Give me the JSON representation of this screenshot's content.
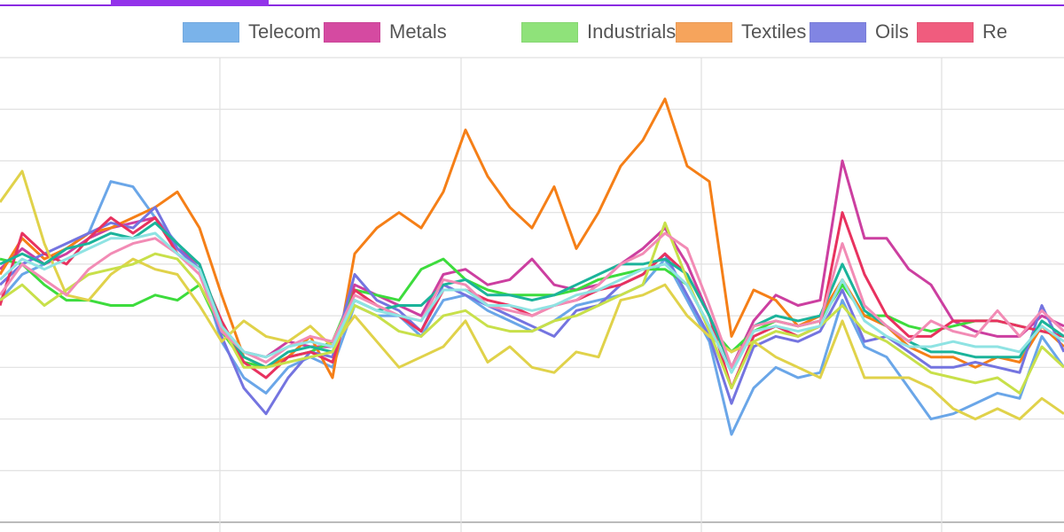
{
  "chart_data": {
    "type": "line",
    "title": "",
    "xlabel": "",
    "ylabel": "",
    "grid": true,
    "legend_position": "top",
    "ylim": [
      0,
      9
    ],
    "series": [
      {
        "name": "Telecom",
        "legend_color": "#7ab3ea",
        "color": "#6aa6e8",
        "values": [
          4.3,
          4.8,
          5.0,
          5.3,
          5.6,
          6.6,
          6.5,
          5.9,
          5.4,
          4.9,
          3.5,
          2.8,
          2.5,
          3.0,
          3.2,
          3.0,
          4.2,
          4.0,
          4.0,
          3.6,
          4.3,
          4.4,
          4.1,
          3.9,
          3.7,
          3.9,
          4.2,
          4.3,
          4.4,
          4.6,
          5.1,
          4.3,
          3.5,
          1.7,
          2.6,
          3.0,
          2.8,
          2.9,
          4.3,
          3.4,
          3.2,
          2.6,
          2.0,
          2.1,
          2.3,
          2.5,
          2.4,
          3.6,
          3.0
        ]
      },
      {
        "name": "Metals",
        "legend_color": "#d54aa1",
        "color": "#cc3fa0",
        "values": [
          4.9,
          5.3,
          5.0,
          5.2,
          5.5,
          5.7,
          5.8,
          5.9,
          5.3,
          5.0,
          3.8,
          3.3,
          3.2,
          3.5,
          3.4,
          3.4,
          4.6,
          4.4,
          4.2,
          4.0,
          4.8,
          4.9,
          4.6,
          4.7,
          5.1,
          4.6,
          4.5,
          4.6,
          5.0,
          5.3,
          5.7,
          5.0,
          4.0,
          3.0,
          3.9,
          4.4,
          4.2,
          4.3,
          7.0,
          5.5,
          5.5,
          4.9,
          4.6,
          3.9,
          3.7,
          3.6,
          3.6,
          4.0,
          3.8
        ]
      },
      {
        "name": "Industrials",
        "legend_color": "#8fe27a",
        "color": "#3ddc3d",
        "values": [
          5.1,
          5.0,
          4.6,
          4.3,
          4.3,
          4.2,
          4.2,
          4.4,
          4.3,
          4.6,
          3.7,
          3.1,
          3.0,
          3.2,
          3.3,
          3.5,
          4.5,
          4.4,
          4.3,
          4.9,
          5.1,
          4.7,
          4.5,
          4.4,
          4.4,
          4.4,
          4.5,
          4.7,
          4.8,
          4.9,
          4.9,
          4.6,
          3.8,
          3.3,
          3.7,
          3.9,
          3.8,
          3.9,
          4.6,
          4.0,
          4.0,
          3.8,
          3.7,
          3.8,
          3.9,
          3.9,
          3.8,
          3.7,
          3.6
        ]
      },
      {
        "name": "Textiles",
        "legend_color": "#f6a45c",
        "color": "#f57f17",
        "values": [
          4.8,
          5.5,
          5.1,
          5.3,
          5.6,
          5.7,
          5.9,
          6.1,
          6.4,
          5.7,
          4.4,
          3.2,
          3.0,
          3.2,
          3.6,
          2.8,
          5.2,
          5.7,
          6.0,
          5.7,
          6.4,
          7.6,
          6.7,
          6.1,
          5.7,
          6.5,
          5.3,
          6.0,
          6.9,
          7.4,
          8.2,
          6.9,
          6.6,
          3.6,
          4.5,
          4.3,
          3.8,
          4.0,
          4.7,
          4.0,
          3.8,
          3.4,
          3.2,
          3.2,
          3.0,
          3.2,
          3.1,
          3.8,
          3.4
        ]
      },
      {
        "name": "Oils",
        "legend_color": "#8185e3",
        "color": "#7474e0",
        "values": [
          4.6,
          5.0,
          5.2,
          5.4,
          5.6,
          5.8,
          5.7,
          6.1,
          5.3,
          4.9,
          3.6,
          2.6,
          2.1,
          2.8,
          3.3,
          3.2,
          4.8,
          4.3,
          4.1,
          3.7,
          4.6,
          4.4,
          4.2,
          4.0,
          3.8,
          3.6,
          4.1,
          4.2,
          4.6,
          4.8,
          5.2,
          4.4,
          3.6,
          2.3,
          3.4,
          3.6,
          3.5,
          3.7,
          4.5,
          3.5,
          3.6,
          3.3,
          3.0,
          3.0,
          3.1,
          3.0,
          2.9,
          4.2,
          3.3
        ]
      },
      {
        "name": "Re",
        "legend_color": "#f05c7e",
        "color": "#e8325f",
        "values": [
          4.2,
          5.6,
          5.2,
          5.0,
          5.5,
          5.9,
          5.6,
          5.9,
          5.2,
          4.9,
          3.9,
          3.1,
          2.8,
          3.2,
          3.3,
          3.1,
          4.5,
          4.2,
          4.0,
          3.7,
          4.5,
          4.5,
          4.3,
          4.2,
          4.0,
          4.2,
          4.3,
          4.5,
          4.6,
          4.8,
          5.2,
          4.8,
          4.0,
          2.6,
          3.6,
          3.8,
          3.6,
          3.8,
          6.0,
          4.8,
          4.0,
          3.6,
          3.6,
          3.9,
          3.9,
          3.9,
          3.8,
          3.7,
          3.6
        ]
      },
      {
        "color": "#e0d24a",
        "values": [
          6.2,
          6.8,
          5.4,
          4.4,
          4.3,
          4.8,
          5.1,
          4.9,
          4.8,
          4.2,
          3.5,
          3.9,
          3.6,
          3.5,
          3.8,
          3.4,
          4.0,
          3.5,
          3.0,
          3.2,
          3.4,
          3.9,
          3.1,
          3.4,
          3.0,
          2.9,
          3.3,
          3.2,
          4.3,
          4.4,
          4.6,
          4.0,
          3.6,
          3.3,
          3.5,
          3.2,
          3.0,
          2.8,
          3.9,
          2.8,
          2.8,
          2.8,
          2.6,
          2.2,
          2.0,
          2.2,
          2.0,
          2.4,
          2.1
        ]
      },
      {
        "color": "#1bb39a",
        "values": [
          5.0,
          5.2,
          5.0,
          5.3,
          5.4,
          5.6,
          5.5,
          5.8,
          5.4,
          5.0,
          3.8,
          3.2,
          3.0,
          3.3,
          3.4,
          3.3,
          4.3,
          4.1,
          4.2,
          4.2,
          4.6,
          4.7,
          4.4,
          4.4,
          4.3,
          4.4,
          4.6,
          4.8,
          5.0,
          5.0,
          5.1,
          4.8,
          4.0,
          3.0,
          3.8,
          4.0,
          3.9,
          4.0,
          5.0,
          4.1,
          3.8,
          3.5,
          3.3,
          3.3,
          3.2,
          3.2,
          3.2,
          3.9,
          3.6
        ]
      },
      {
        "color": "#c8e04a",
        "values": [
          4.3,
          4.6,
          4.2,
          4.5,
          4.8,
          4.9,
          5.0,
          5.2,
          5.1,
          4.6,
          3.8,
          3.0,
          3.0,
          3.1,
          3.2,
          3.3,
          4.2,
          4.0,
          3.7,
          3.6,
          4.0,
          4.1,
          3.8,
          3.7,
          3.7,
          3.9,
          4.0,
          4.2,
          4.4,
          4.6,
          5.8,
          4.7,
          3.7,
          2.6,
          3.5,
          3.7,
          3.6,
          3.8,
          4.2,
          3.7,
          3.5,
          3.2,
          2.9,
          2.8,
          2.7,
          2.8,
          2.5,
          3.4,
          3.0
        ]
      },
      {
        "color": "#f28bb5",
        "values": [
          4.4,
          5.0,
          4.7,
          4.4,
          4.9,
          5.2,
          5.4,
          5.5,
          5.2,
          4.8,
          3.7,
          3.3,
          3.1,
          3.4,
          3.6,
          3.5,
          4.4,
          4.2,
          4.0,
          3.9,
          4.7,
          4.6,
          4.2,
          4.1,
          4.0,
          4.2,
          4.3,
          4.6,
          5.0,
          5.2,
          5.6,
          5.3,
          4.2,
          3.0,
          3.8,
          3.9,
          3.8,
          3.9,
          5.4,
          4.2,
          3.8,
          3.5,
          3.9,
          3.7,
          3.6,
          4.1,
          3.6,
          4.1,
          3.7
        ]
      },
      {
        "color": "#8fe3e3",
        "values": [
          4.7,
          5.1,
          4.9,
          5.1,
          5.3,
          5.5,
          5.5,
          5.6,
          5.2,
          4.9,
          3.8,
          3.3,
          3.2,
          3.4,
          3.5,
          3.4,
          4.3,
          4.1,
          4.0,
          3.9,
          4.5,
          4.5,
          4.2,
          4.2,
          4.1,
          4.2,
          4.4,
          4.5,
          4.7,
          4.9,
          5.0,
          4.6,
          3.8,
          2.9,
          3.7,
          3.8,
          3.7,
          3.8,
          4.7,
          3.9,
          3.6,
          3.4,
          3.4,
          3.5,
          3.4,
          3.4,
          3.3,
          3.8,
          3.5
        ]
      }
    ]
  }
}
